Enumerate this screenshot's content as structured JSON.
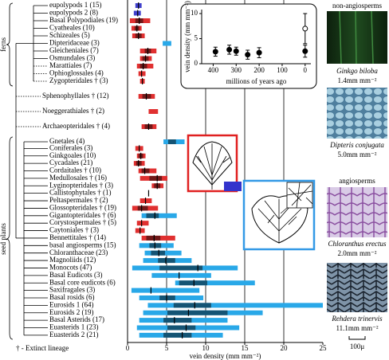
{
  "chart_data": [
    {
      "type": "range",
      "x_label": "vein density (mm mm⁻²)",
      "xlim": [
        0,
        25
      ],
      "xticks": [
        0,
        5,
        10,
        15,
        20,
        25
      ],
      "grid": true,
      "categories": [
        "eupolypods 1 (15)",
        "eupolypods 2 (8)",
        "Basal Polypodiales (19)",
        "Cyatheales (10)",
        "Schizeales (5)",
        "Dipteridaceae (3)",
        "Gleicheniales (7)",
        "Osmundales (3)",
        "Marattiales (7)",
        "Ophioglossales (4)",
        "Zygopteridales † (3)",
        "Sphenophyllales † (12)",
        "Noeggerathiales † (2)",
        "Archaeopteridales † (4)",
        "Gnetales (4)",
        "Coniferales (3)",
        "Ginkgoales (10)",
        "Cycadales (21)",
        "Cordaitales † (10)",
        "Medullosales † (16)",
        "Lyginopteridales † (3)",
        "Callistophytales † (1)",
        "Peltaspermales † (2)",
        "Glossopteridales † (19)",
        "Gigantopteridales † (6)",
        "Corystospermales † (5)",
        "Caytoniales † (3)",
        "Bennettitales † (14)",
        "basal angiosperms (15)",
        "Chloranthaceae (23)",
        "Magnoliids (12)",
        "Monocots (47)",
        "Basal Eudicots (3)",
        "Basal core eudicots (6)",
        "Saxifragales (3)",
        "Basal rosids (6)",
        "Eurosids 1 (64)",
        "Eurosids 2 (19)",
        "Basal Asterids (17)",
        "Euasterids 1 (23)",
        "Euasterids 2 (21)"
      ],
      "min": [
        1.0,
        0.8,
        0.3,
        0.5,
        0.6,
        4.5,
        1.6,
        1.6,
        1.2,
        1.4,
        1.6,
        1.4,
        2.7,
        1.8,
        4.6,
        1.0,
        1.2,
        0.8,
        1.4,
        1.6,
        3.1,
        null,
        1.6,
        0.6,
        1.8,
        1.2,
        1.0,
        1.8,
        1.5,
        2.2,
        2.0,
        0.6,
        3.1,
        6.1,
        0.5,
        1.5,
        2.6,
        2.0,
        1.5,
        1.2,
        1.5
      ],
      "max": [
        1.8,
        1.7,
        2.9,
        1.8,
        2.2,
        5.6,
        3.7,
        3.1,
        3.3,
        2.3,
        2.2,
        3.5,
        3.9,
        3.7,
        7.3,
        2.0,
        2.3,
        2.2,
        3.7,
        5.1,
        4.6,
        null,
        3.1,
        3.9,
        6.3,
        2.7,
        2.2,
        6.1,
        5.9,
        6.9,
        8.2,
        14.1,
        10.7,
        16.3,
        9.2,
        9.7,
        25,
        17.3,
        12.8,
        14.3,
        12.2
      ],
      "q1": [
        null,
        null,
        1.0,
        0.9,
        1.0,
        null,
        2.2,
        1.9,
        1.6,
        null,
        null,
        1.9,
        null,
        2.2,
        5.2,
        null,
        1.4,
        1.1,
        1.8,
        2.8,
        3.4,
        null,
        null,
        1.3,
        2.4,
        null,
        null,
        2.4,
        2.8,
        3.0,
        3.9,
        4.1,
        null,
        6.6,
        null,
        4.1,
        5.9,
        5.1,
        4.6,
        5.1,
        4.6
      ],
      "q3": [
        null,
        null,
        2.0,
        1.5,
        1.8,
        null,
        3.0,
        2.7,
        2.5,
        null,
        null,
        3.0,
        null,
        3.2,
        6.2,
        null,
        2.0,
        1.8,
        2.8,
        4.4,
        4.2,
        null,
        null,
        2.6,
        4.0,
        null,
        null,
        4.2,
        4.3,
        4.8,
        6.1,
        9.6,
        null,
        10.2,
        null,
        6.1,
        10.7,
        12.8,
        8.2,
        8.7,
        8.2
      ],
      "median": [
        1.4,
        1.3,
        1.5,
        1.2,
        1.4,
        null,
        2.6,
        2.3,
        2.0,
        1.8,
        1.9,
        2.4,
        null,
        2.7,
        null,
        1.5,
        1.7,
        1.4,
        2.2,
        3.8,
        3.8,
        2.7,
        2.3,
        1.8,
        3.5,
        1.8,
        1.6,
        3.4,
        3.5,
        4.0,
        4.9,
        9.0,
        6.6,
        8.5,
        3.0,
        5.0,
        8.6,
        7.8,
        6.0,
        7.5,
        7.0
      ],
      "colors": [
        "#4040cc",
        "#4040cc",
        "#e03030",
        "#e03030",
        "#e03030",
        "#29a8e8",
        "#e03030",
        "#e03030",
        "#e03030",
        "#e03030",
        "#e03030",
        "#e03030",
        "#e03030",
        "#e03030",
        "#29a8e8",
        "#e03030",
        "#e03030",
        "#e03030",
        "#e03030",
        "#e03030",
        "#e03030",
        "#e03030",
        "#e03030",
        "#e03030",
        "#29a8e8",
        "#e03030",
        "#e03030",
        "#e03030",
        "#29a8e8",
        "#29a8e8",
        "#29a8e8",
        "#29a8e8",
        "#29a8e8",
        "#29a8e8",
        "#29a8e8",
        "#29a8e8",
        "#29a8e8",
        "#29a8e8",
        "#29a8e8",
        "#29a8e8",
        "#29a8e8"
      ],
      "groups": [
        "ferns",
        "seed plants"
      ],
      "footnote": "† - Extinct lineage"
    },
    {
      "type": "scatter",
      "x_label": "millions of years ago",
      "y_label": "vein density (mm mm⁻²)",
      "xlim": [
        450,
        -25
      ],
      "ylim": [
        0,
        10.8
      ],
      "xticks": [
        400,
        300,
        200,
        100,
        0
      ],
      "yticks": [
        0,
        5,
        10
      ],
      "x": [
        390,
        330,
        300,
        250,
        200,
        0,
        0
      ],
      "values": [
        2.4,
        2.8,
        2.5,
        1.8,
        2.2,
        2.5,
        7.0
      ],
      "errors": [
        0.9,
        0.9,
        0.8,
        0.9,
        1.0,
        1.2,
        3.0
      ],
      "markers": [
        "filled",
        "filled",
        "filled",
        "filled",
        "filled",
        "filled",
        "open"
      ]
    }
  ],
  "images": {
    "heading_1": "non-angiosperms",
    "heading_2": "angiosperms",
    "panels": [
      {
        "species": "Ginkgo biloba",
        "density": "1.4mm mm⁻²"
      },
      {
        "species": "Dipteris conjugata",
        "density": "5.0mm mm⁻²"
      },
      {
        "species": "Chloranthus erectus",
        "density": "2.0mm mm⁻²"
      },
      {
        "species": "Rehdera trinervis",
        "density": "11.1mm mm⁻²"
      }
    ],
    "scale_bar": "100μ"
  }
}
